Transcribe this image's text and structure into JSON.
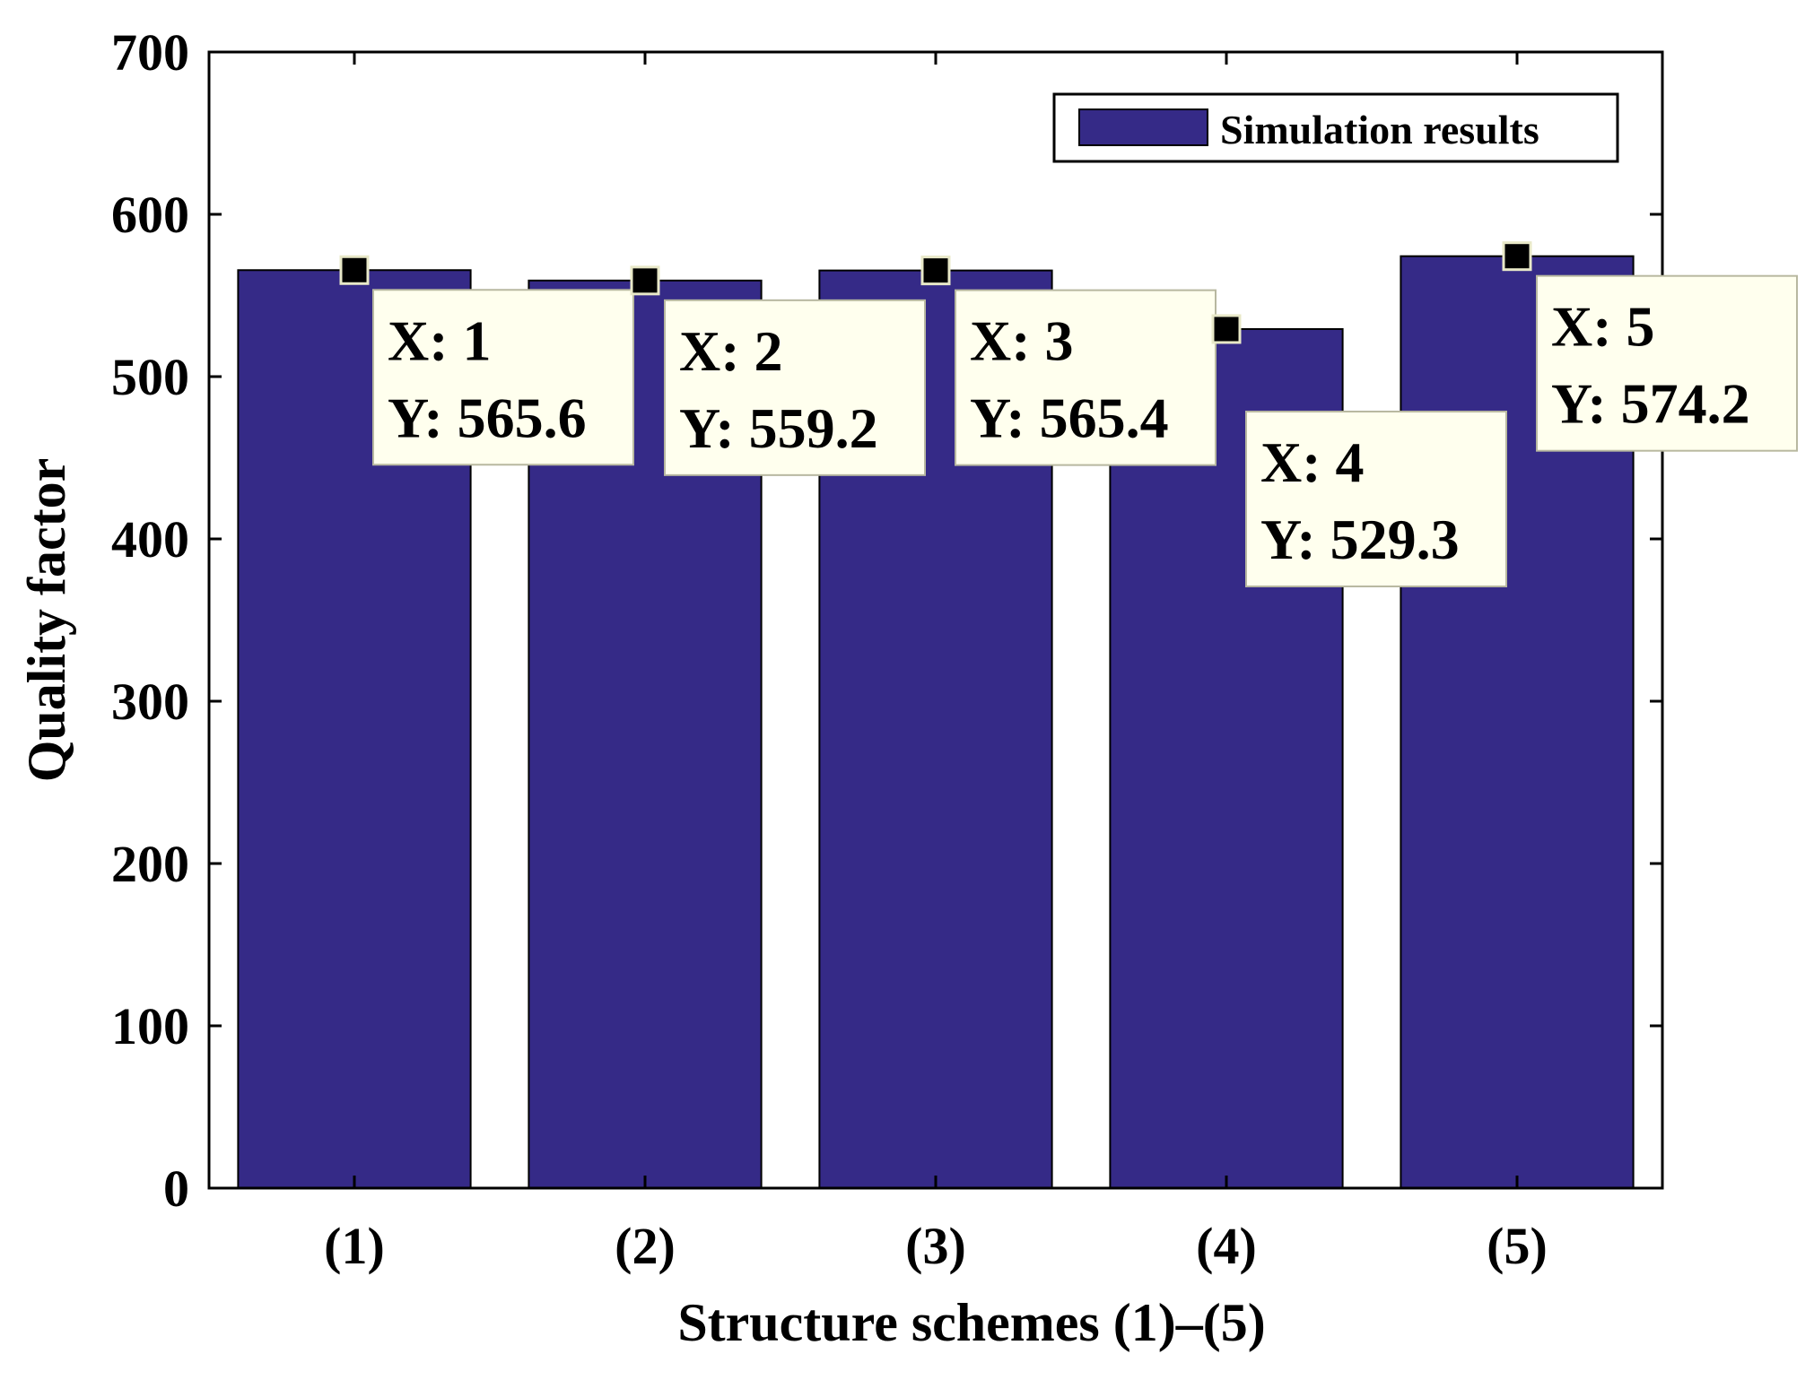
{
  "chart_data": {
    "type": "bar",
    "title": "",
    "xlabel": "Structure schemes (1)–(5)",
    "ylabel": "Quality factor",
    "categories": [
      "(1)",
      "(2)",
      "(3)",
      "(4)",
      "(5)"
    ],
    "x": [
      1,
      2,
      3,
      4,
      5
    ],
    "values": [
      565.6,
      559.2,
      565.4,
      529.3,
      574.2
    ],
    "ylim": [
      0,
      700
    ],
    "yticks": [
      0,
      100,
      200,
      300,
      400,
      500,
      600,
      700
    ],
    "series": [
      {
        "name": "Simulation results",
        "values": [
          565.6,
          559.2,
          565.4,
          529.3,
          574.2
        ]
      }
    ],
    "legend": {
      "label": "Simulation results",
      "position": "top-right"
    },
    "datatips": [
      {
        "x_label": "X: 1",
        "y_label": "Y: 565.6"
      },
      {
        "x_label": "X: 2",
        "y_label": "Y: 559.2"
      },
      {
        "x_label": "X: 3",
        "y_label": "Y: 565.4"
      },
      {
        "x_label": "X: 4",
        "y_label": "Y: 529.3"
      },
      {
        "x_label": "X: 5",
        "y_label": "Y: 574.2"
      }
    ],
    "grid": false,
    "colors": {
      "bar": "#352a87",
      "datatip_bg": "#ffffee",
      "marker": "#000000",
      "axis": "#000000"
    }
  }
}
